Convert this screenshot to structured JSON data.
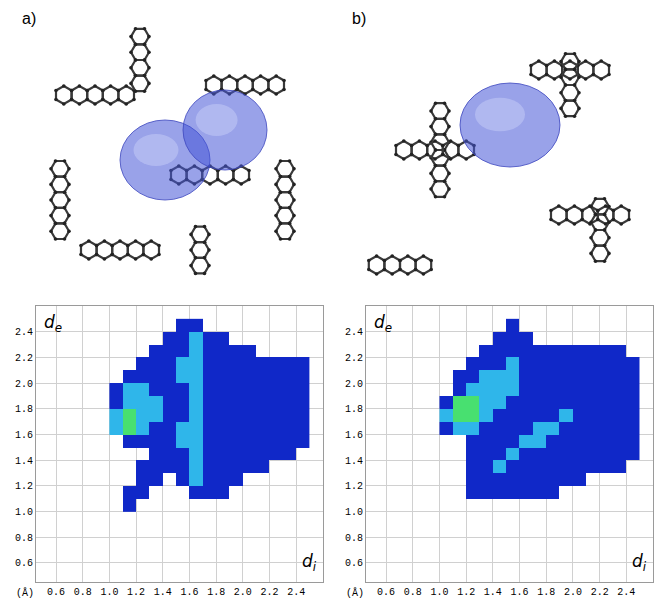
{
  "chart_data": [
    {
      "type": "heatmap",
      "panel": "a)",
      "x": [
        1.05,
        1.15,
        1.25,
        1.35,
        1.45,
        1.55,
        1.65,
        1.75,
        1.85,
        1.95,
        2.05,
        2.15,
        2.25,
        2.35,
        2.45
      ],
      "y": [
        1.05,
        1.15,
        1.25,
        1.35,
        1.45,
        1.55,
        1.65,
        1.75,
        1.85,
        1.95,
        2.05,
        2.15,
        2.25,
        2.35,
        2.45
      ],
      "cells": [
        [
          null,
          1,
          null,
          null,
          null,
          null,
          null,
          null,
          null,
          null,
          null,
          null,
          null,
          null,
          null
        ],
        [
          null,
          1,
          1,
          null,
          null,
          null,
          1,
          1,
          1,
          null,
          null,
          null,
          null,
          null,
          null
        ],
        [
          null,
          null,
          1,
          1,
          null,
          1,
          2,
          1,
          1,
          1,
          null,
          null,
          null,
          null,
          null
        ],
        [
          null,
          null,
          1,
          1,
          1,
          1,
          2,
          1,
          1,
          1,
          1,
          1,
          null,
          null,
          null
        ],
        [
          null,
          null,
          null,
          1,
          1,
          1,
          2,
          1,
          1,
          1,
          1,
          1,
          1,
          1,
          null
        ],
        [
          null,
          1,
          1,
          1,
          1,
          2,
          2,
          1,
          1,
          1,
          1,
          1,
          1,
          1,
          1
        ],
        [
          2,
          3,
          2,
          1,
          1,
          2,
          2,
          1,
          1,
          1,
          1,
          1,
          1,
          1,
          1
        ],
        [
          2,
          3,
          2,
          2,
          1,
          1,
          2,
          1,
          1,
          1,
          1,
          1,
          1,
          1,
          1
        ],
        [
          1,
          2,
          2,
          2,
          1,
          1,
          2,
          1,
          1,
          1,
          1,
          1,
          1,
          1,
          1
        ],
        [
          1,
          2,
          2,
          1,
          1,
          1,
          2,
          1,
          1,
          1,
          1,
          1,
          1,
          1,
          1
        ],
        [
          null,
          1,
          1,
          1,
          1,
          2,
          2,
          1,
          1,
          1,
          1,
          1,
          1,
          1,
          1
        ],
        [
          null,
          null,
          1,
          1,
          1,
          2,
          2,
          1,
          1,
          1,
          1,
          1,
          1,
          1,
          1
        ],
        [
          null,
          null,
          null,
          1,
          1,
          1,
          2,
          1,
          1,
          1,
          1,
          null,
          null,
          null,
          null
        ],
        [
          null,
          null,
          null,
          null,
          1,
          1,
          2,
          1,
          1,
          null,
          null,
          null,
          null,
          null,
          null
        ],
        [
          null,
          null,
          null,
          null,
          null,
          1,
          1,
          null,
          null,
          null,
          null,
          null,
          null,
          null,
          null
        ]
      ],
      "xlim": [
        0.45,
        2.6
      ],
      "ylim": [
        0.45,
        2.6
      ],
      "xticks": [
        0.6,
        0.8,
        {
          "value": 1,
          "label": "1.0"
        },
        1.2,
        1.4,
        1.6,
        1.8,
        {
          "value": 2,
          "label": "2.0"
        },
        2.2,
        2.4
      ],
      "yticks": [
        0.6,
        0.8,
        {
          "value": 1,
          "label": "1.0"
        },
        1.2,
        1.4,
        1.6,
        1.8,
        {
          "value": 2,
          "label": "2.0"
        },
        2.2,
        2.4
      ],
      "x_label": {
        "symbol": "d",
        "subscript": "i"
      },
      "y_label": {
        "symbol": "d",
        "subscript": "e"
      },
      "unit_label": "(Å)",
      "grid": true
    },
    {
      "type": "heatmap",
      "panel": "b)",
      "x": [
        1.05,
        1.15,
        1.25,
        1.35,
        1.45,
        1.55,
        1.65,
        1.75,
        1.85,
        1.95,
        2.05,
        2.15,
        2.25,
        2.35,
        2.45
      ],
      "y": [
        1.05,
        1.15,
        1.25,
        1.35,
        1.45,
        1.55,
        1.65,
        1.75,
        1.85,
        1.95,
        2.05,
        2.15,
        2.25,
        2.35,
        2.45
      ],
      "cells": [
        [
          null,
          null,
          null,
          null,
          null,
          null,
          null,
          null,
          null,
          null,
          null,
          null,
          null,
          null,
          null
        ],
        [
          null,
          null,
          1,
          1,
          1,
          1,
          1,
          1,
          1,
          null,
          null,
          null,
          null,
          null,
          null
        ],
        [
          null,
          null,
          1,
          1,
          1,
          1,
          1,
          1,
          1,
          1,
          1,
          null,
          null,
          null,
          null
        ],
        [
          null,
          null,
          1,
          1,
          2,
          1,
          1,
          1,
          1,
          1,
          1,
          1,
          1,
          1,
          null
        ],
        [
          null,
          null,
          1,
          1,
          1,
          2,
          1,
          1,
          1,
          1,
          1,
          1,
          1,
          1,
          1
        ],
        [
          null,
          null,
          1,
          1,
          1,
          1,
          2,
          2,
          1,
          1,
          1,
          1,
          1,
          1,
          1
        ],
        [
          1,
          2,
          2,
          1,
          1,
          1,
          1,
          2,
          2,
          1,
          1,
          1,
          1,
          1,
          1
        ],
        [
          2,
          3,
          3,
          2,
          1,
          1,
          1,
          1,
          1,
          2,
          1,
          1,
          1,
          1,
          1
        ],
        [
          1,
          3,
          3,
          2,
          2,
          1,
          1,
          1,
          1,
          1,
          1,
          1,
          1,
          1,
          1
        ],
        [
          null,
          1,
          2,
          2,
          2,
          2,
          1,
          1,
          1,
          1,
          1,
          1,
          1,
          1,
          1
        ],
        [
          null,
          1,
          1,
          2,
          2,
          2,
          1,
          1,
          1,
          1,
          1,
          1,
          1,
          1,
          1
        ],
        [
          null,
          null,
          1,
          1,
          1,
          2,
          1,
          1,
          1,
          1,
          1,
          1,
          1,
          1,
          1
        ],
        [
          null,
          null,
          null,
          1,
          1,
          1,
          1,
          1,
          1,
          1,
          1,
          1,
          1,
          1,
          null
        ],
        [
          null,
          null,
          null,
          null,
          1,
          1,
          1,
          null,
          null,
          null,
          null,
          null,
          null,
          null,
          null
        ],
        [
          null,
          null,
          null,
          null,
          null,
          1,
          null,
          null,
          null,
          null,
          null,
          null,
          null,
          null,
          null
        ]
      ],
      "xlim": [
        0.45,
        2.6
      ],
      "ylim": [
        0.45,
        2.6
      ],
      "xticks": [
        0.6,
        0.8,
        {
          "value": 1,
          "label": "1.0"
        },
        1.2,
        1.4,
        1.6,
        1.8,
        {
          "value": 2,
          "label": "2.0"
        },
        2.2,
        2.4
      ],
      "yticks": [
        0.6,
        0.8,
        {
          "value": 1,
          "label": "1.0"
        },
        1.2,
        1.4,
        1.6,
        1.8,
        {
          "value": 2,
          "label": "2.0"
        },
        2.2,
        2.4
      ],
      "x_label": {
        "symbol": "d",
        "subscript": "i"
      },
      "y_label": {
        "symbol": "d",
        "subscript": "e"
      },
      "unit_label": "(Å)",
      "grid": true
    }
  ]
}
